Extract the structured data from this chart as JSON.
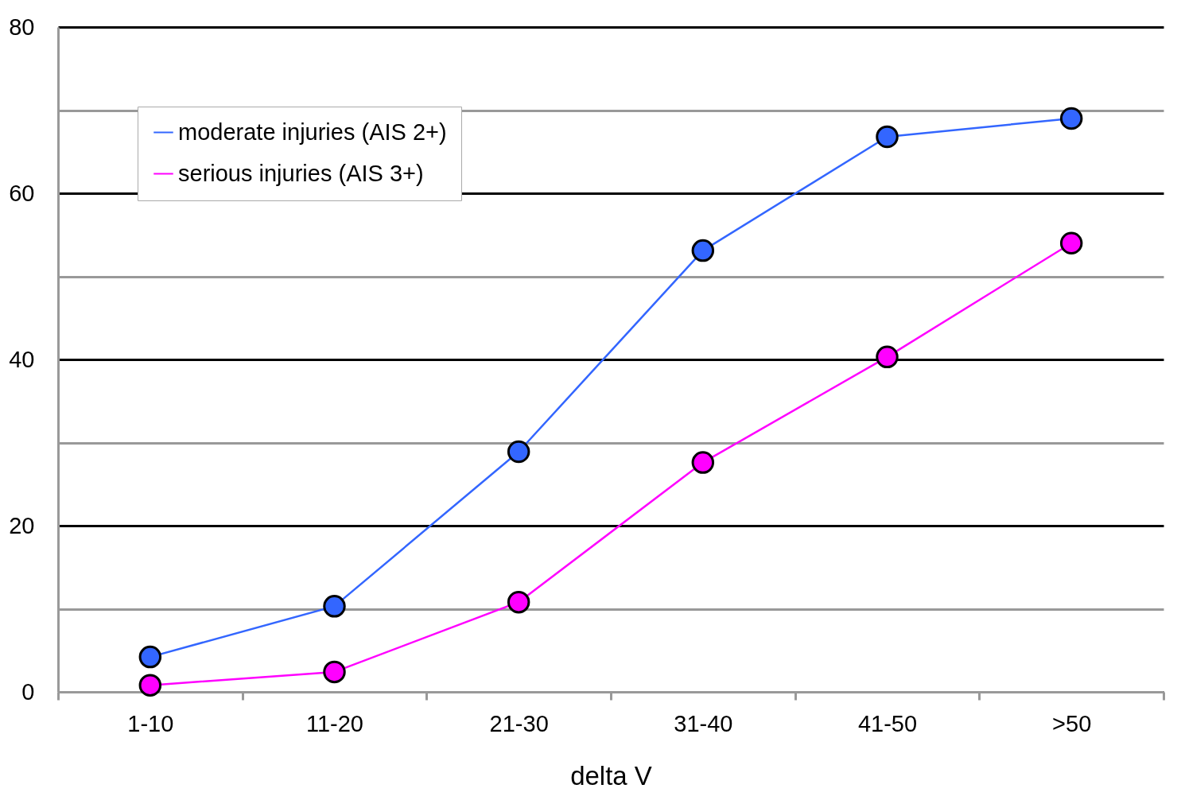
{
  "chart_data": {
    "type": "line",
    "xlabel": "delta V",
    "categories": [
      "1-10",
      "11-20",
      "21-30",
      "31-40",
      "41-50",
      ">50"
    ],
    "series": [
      {
        "name": "moderate injuries (AIS 2+)",
        "color": "#3366ff",
        "values": [
          4.2,
          10.3,
          28.9,
          53.1,
          66.8,
          69.0
        ]
      },
      {
        "name": "serious injuries (AIS 3+)",
        "color": "#ff00ff",
        "values": [
          0.8,
          2.4,
          10.8,
          27.6,
          40.3,
          54.0
        ]
      }
    ],
    "ylim": [
      0,
      80
    ],
    "yticks": [
      0,
      {
        "value": 10,
        "label": null
      },
      20,
      {
        "value": 30,
        "label": null
      },
      40,
      {
        "value": 50,
        "label": null
      },
      60,
      {
        "value": 70,
        "label": null
      },
      80
    ],
    "grid": "y",
    "legend": "top left",
    "marker": "circle",
    "line_style": "solid"
  }
}
